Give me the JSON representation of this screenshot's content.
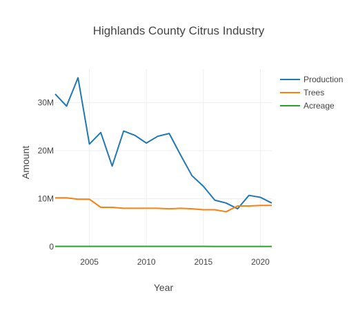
{
  "chart_data": {
    "type": "line",
    "title": "Highlands County Citrus Industry",
    "xlabel": "Year",
    "ylabel": "Amount",
    "xlim": [
      2002,
      2021
    ],
    "ylim": [
      0,
      37000000
    ],
    "x_ticks": [
      2005,
      2010,
      2015,
      2020
    ],
    "y_ticks": [
      {
        "value": 0,
        "label": "0"
      },
      {
        "value": 10000000,
        "label": "10M"
      },
      {
        "value": 20000000,
        "label": "20M"
      },
      {
        "value": 30000000,
        "label": "30M"
      }
    ],
    "grid": true,
    "legend_position": "top-right",
    "x": [
      2002,
      2003,
      2004,
      2005,
      2006,
      2007,
      2008,
      2009,
      2010,
      2011,
      2012,
      2013,
      2014,
      2015,
      2016,
      2017,
      2018,
      2019,
      2020,
      2021
    ],
    "series": [
      {
        "name": "Production",
        "color": "#1f77b4",
        "values": [
          31800000,
          29300000,
          35200000,
          21400000,
          23800000,
          16800000,
          24100000,
          23200000,
          21600000,
          23000000,
          23600000,
          19100000,
          14800000,
          12600000,
          9700000,
          9100000,
          7900000,
          10700000,
          10300000,
          9100000
        ]
      },
      {
        "name": "Trees",
        "color": "#ff7f0e",
        "values": [
          10200000,
          10200000,
          9900000,
          9900000,
          8200000,
          8200000,
          8000000,
          8000000,
          8000000,
          8000000,
          7900000,
          8000000,
          7900000,
          7700000,
          7700000,
          7300000,
          8500000,
          8500000,
          8600000,
          8600000
        ]
      },
      {
        "name": "Acreage",
        "color": "#2ca02c",
        "values": [
          78000,
          77000,
          76000,
          75000,
          74000,
          73000,
          72000,
          71000,
          70000,
          69000,
          68000,
          67000,
          66000,
          65000,
          64000,
          63000,
          62000,
          61000,
          60000,
          59000
        ]
      }
    ]
  }
}
